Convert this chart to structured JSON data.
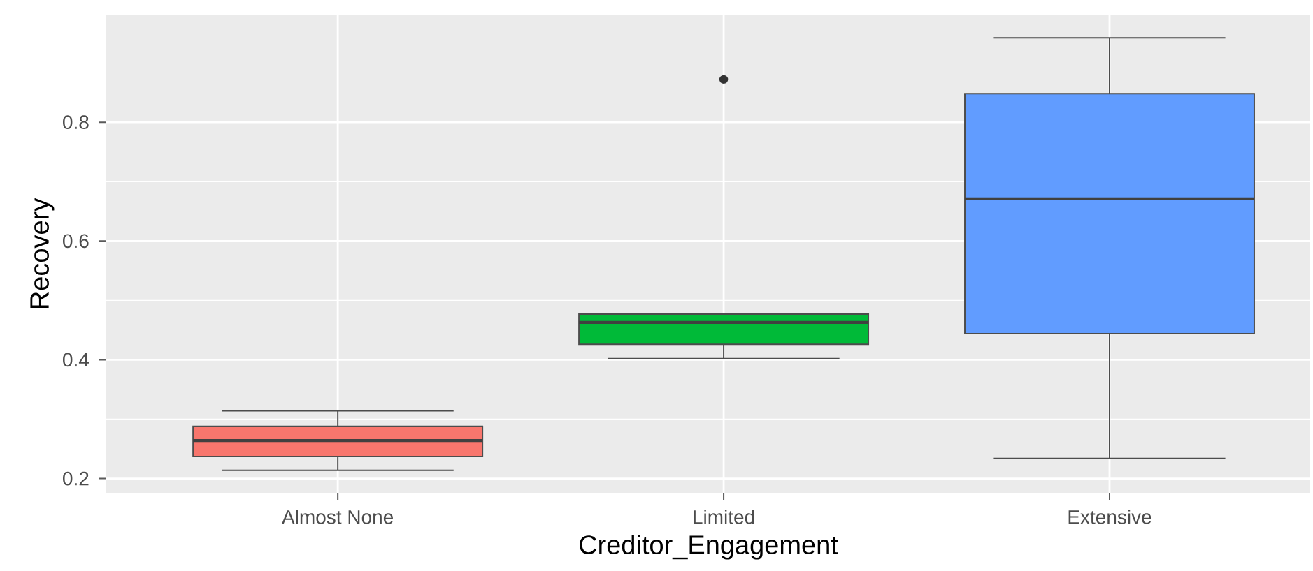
{
  "chart_data": {
    "type": "box",
    "categories": [
      "Almost None",
      "Limited",
      "Extensive"
    ],
    "xlabel": "Creditor_Engagement",
    "ylabel": "Recovery",
    "colors": [
      "#f8766d",
      "#00ba38",
      "#619cff"
    ],
    "boxes": [
      {
        "low": 0.214,
        "q1": 0.237,
        "median": 0.264,
        "q3": 0.288,
        "high": 0.314
      },
      {
        "low": 0.402,
        "q1": 0.426,
        "median": 0.463,
        "q3": 0.477,
        "high": 0.477,
        "outliers": [
          0.872
        ]
      },
      {
        "low": 0.234,
        "q1": 0.444,
        "median": 0.671,
        "q3": 0.848,
        "high": 0.942
      }
    ],
    "ylim": [
      0.176,
      0.98
    ],
    "yticks": [
      0.2,
      0.4,
      0.6,
      0.8
    ],
    "grid": true
  }
}
